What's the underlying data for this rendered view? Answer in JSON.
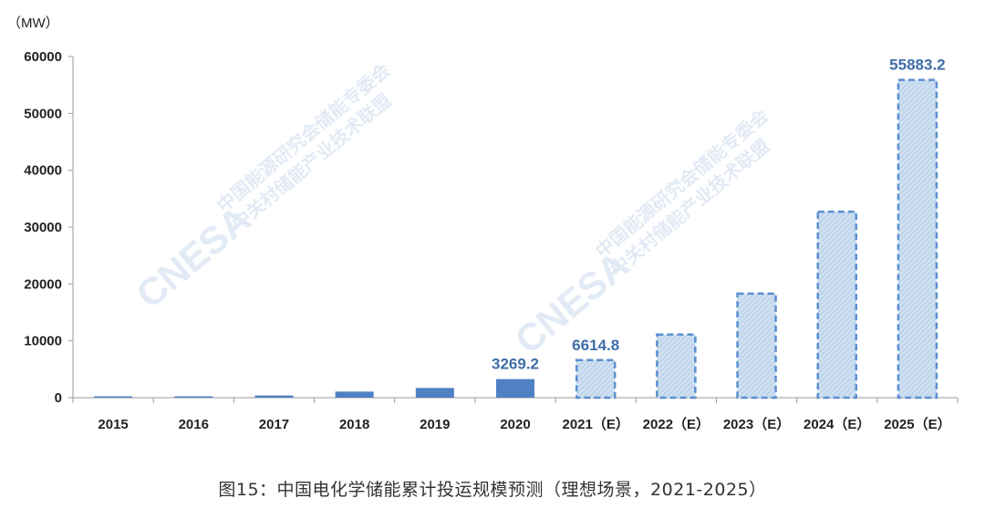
{
  "chart_data": {
    "type": "bar",
    "unit_label": "（MW）",
    "categories": [
      "2015",
      "2016",
      "2017",
      "2018",
      "2019",
      "2020",
      "2021（E）",
      "2022（E）",
      "2023（E）",
      "2024（E）",
      "2025（E）"
    ],
    "values": [
      140,
      243,
      390,
      1070,
      1710,
      3269.2,
      6614.8,
      11100,
      18300,
      32700,
      55883.2
    ],
    "estimated": [
      false,
      false,
      false,
      false,
      false,
      false,
      true,
      true,
      true,
      true,
      true
    ],
    "data_labels": [
      "",
      "",
      "",
      "",
      "",
      "3269.2",
      "6614.8",
      "",
      "",
      "",
      "55883.2"
    ],
    "ylim": [
      0,
      60000
    ],
    "yticks": [
      0,
      10000,
      20000,
      30000,
      40000,
      50000,
      60000
    ],
    "grid": false,
    "colors": {
      "actual_bar": "#4f81c4",
      "estimated_fill": "#c5d9ec",
      "estimated_border": "#5b8fd0",
      "data_label": "#3f6ea8",
      "axis": "#9a9a9a"
    }
  },
  "caption": "图15：中国电化学储能累计投运规模预测（理想场景，2021-2025）",
  "watermark": {
    "brand": "CNESA",
    "line1": "中国能源研究会储能专委会",
    "line2": "中关村储能产业技术联盟"
  }
}
